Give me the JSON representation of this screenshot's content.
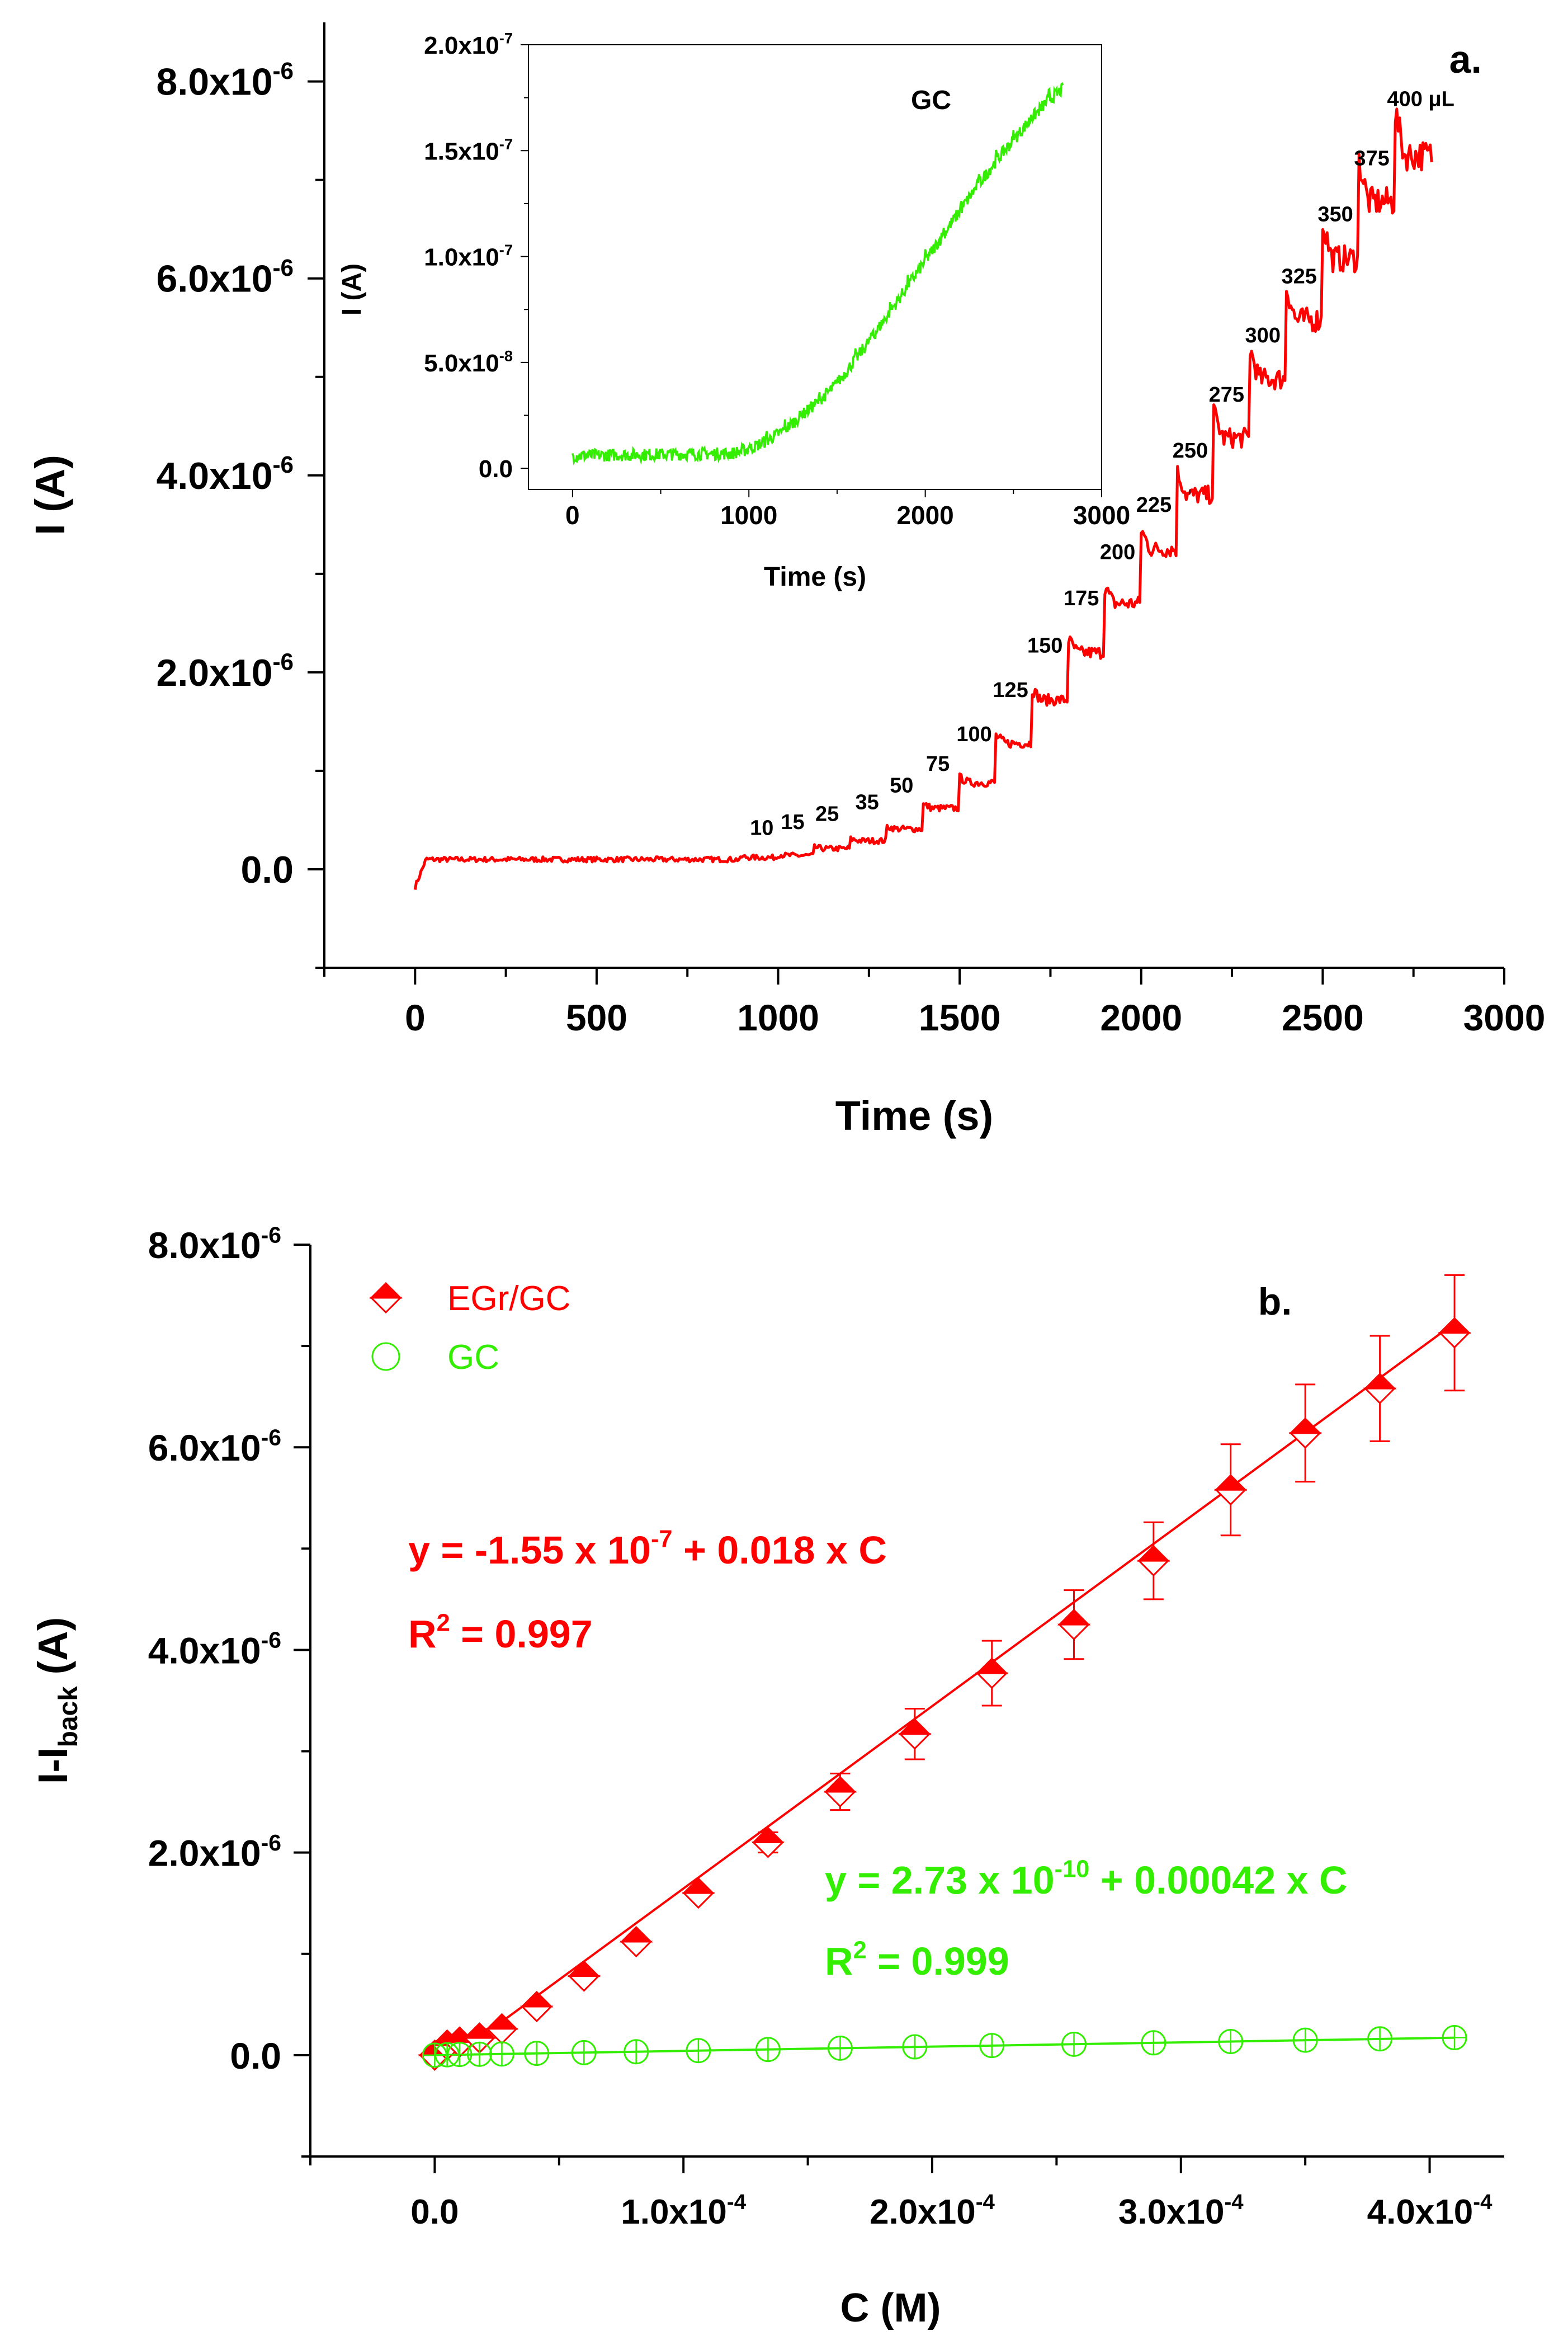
{
  "chart_data": [
    {
      "panel": "a.",
      "type": "line",
      "xlabel": "Time (s)",
      "ylabel": "I (A)",
      "xlim": [
        -250,
        3000
      ],
      "ylim": [
        -1e-06,
        8.6e-06
      ],
      "xticks": [
        "0",
        "500",
        "1000",
        "1500",
        "2000",
        "2500",
        "3000"
      ],
      "yticks": [
        {
          "m": "0.0",
          "e": ""
        },
        {
          "m": "2.0x10",
          "e": "-6"
        },
        {
          "m": "4.0x10",
          "e": "-6"
        },
        {
          "m": "6.0x10",
          "e": "-6"
        },
        {
          "m": "8.0x10",
          "e": "-6"
        }
      ],
      "color": "#ff0000",
      "series": [
        {
          "name": "EGr/GC",
          "steps": [
            {
              "t": 0,
              "i": 1e-07
            },
            {
              "t": 900,
              "i": 1.2e-07
            },
            {
              "t": 1000,
              "i": 1.4e-07
            },
            {
              "t": 1100,
              "i": 2.1e-07
            },
            {
              "t": 1200,
              "i": 2.9e-07
            },
            {
              "t": 1300,
              "i": 4.1e-07
            },
            {
              "t": 1400,
              "i": 6.2e-07
            },
            {
              "t": 1500,
              "i": 8.8e-07
            },
            {
              "t": 1600,
              "i": 1.28e-06
            },
            {
              "t": 1700,
              "i": 1.72e-06
            },
            {
              "t": 1800,
              "i": 2.2e-06
            },
            {
              "t": 1900,
              "i": 2.7e-06
            },
            {
              "t": 2000,
              "i": 3.25e-06
            },
            {
              "t": 2100,
              "i": 3.8e-06
            },
            {
              "t": 2200,
              "i": 4.38e-06
            },
            {
              "t": 2300,
              "i": 4.98e-06
            },
            {
              "t": 2400,
              "i": 5.58e-06
            },
            {
              "t": 2500,
              "i": 6.2e-06
            },
            {
              "t": 2600,
              "i": 6.78e-06
            },
            {
              "t": 2700,
              "i": 7.25e-06
            }
          ],
          "end_t": 2800
        }
      ],
      "annotations": [
        {
          "text": "10",
          "x": 955,
          "y": 3.5e-07
        },
        {
          "text": "15",
          "x": 1040,
          "y": 4.1e-07
        },
        {
          "text": "25",
          "x": 1135,
          "y": 4.9e-07
        },
        {
          "text": "35",
          "x": 1245,
          "y": 6.1e-07
        },
        {
          "text": "50",
          "x": 1340,
          "y": 7.8e-07
        },
        {
          "text": "75",
          "x": 1440,
          "y": 1e-06
        },
        {
          "text": "100",
          "x": 1540,
          "y": 1.3e-06
        },
        {
          "text": "125",
          "x": 1640,
          "y": 1.75e-06
        },
        {
          "text": "150",
          "x": 1735,
          "y": 2.2e-06
        },
        {
          "text": "175",
          "x": 1835,
          "y": 2.68e-06
        },
        {
          "text": "200",
          "x": 1935,
          "y": 3.15e-06
        },
        {
          "text": "225",
          "x": 2035,
          "y": 3.63e-06
        },
        {
          "text": "250",
          "x": 2135,
          "y": 4.18e-06
        },
        {
          "text": "275",
          "x": 2235,
          "y": 4.75e-06
        },
        {
          "text": "300",
          "x": 2335,
          "y": 5.35e-06
        },
        {
          "text": "325",
          "x": 2435,
          "y": 5.95e-06
        },
        {
          "text": "350",
          "x": 2535,
          "y": 6.58e-06
        },
        {
          "text": "375",
          "x": 2635,
          "y": 7.15e-06
        },
        {
          "text": "400 μL",
          "x": 2770,
          "y": 7.75e-06
        }
      ],
      "inset": {
        "title": "GC",
        "type": "line",
        "xlabel": "Time (s)",
        "ylabel": "I (A)",
        "xlim": [
          -250,
          3000
        ],
        "ylim": [
          -1e-08,
          2e-07
        ],
        "xticks": [
          "0",
          "1000",
          "2000",
          "3000"
        ],
        "yticks": [
          {
            "m": "0.0",
            "e": ""
          },
          {
            "m": "5.0x10",
            "e": "-8"
          },
          {
            "m": "1.0x10",
            "e": "-7"
          },
          {
            "m": "1.5x10",
            "e": "-7"
          },
          {
            "m": "2.0x10",
            "e": "-7"
          }
        ],
        "color": "#33ee00",
        "points": [
          [
            0,
            6e-09
          ],
          [
            900,
            7e-09
          ],
          [
            1000,
            9e-09
          ],
          [
            1100,
            1.3e-08
          ],
          [
            1200,
            1.8e-08
          ],
          [
            1300,
            2.5e-08
          ],
          [
            1400,
            3.2e-08
          ],
          [
            1500,
            4e-08
          ],
          [
            1600,
            5.1e-08
          ],
          [
            1700,
            6.2e-08
          ],
          [
            1800,
            7.4e-08
          ],
          [
            1900,
            8.6e-08
          ],
          [
            2000,
            9.8e-08
          ],
          [
            2100,
            1.1e-07
          ],
          [
            2200,
            1.22e-07
          ],
          [
            2300,
            1.34e-07
          ],
          [
            2400,
            1.45e-07
          ],
          [
            2500,
            1.55e-07
          ],
          [
            2600,
            1.65e-07
          ],
          [
            2700,
            1.74e-07
          ],
          [
            2780,
            1.79e-07
          ]
        ]
      }
    },
    {
      "panel": "b.",
      "type": "scatter",
      "xlabel": "C (M)",
      "ylabel": "I-I",
      "ylabel_sub": "back",
      "ylabel_suffix": " (A)",
      "xlim": [
        -5e-05,
        0.00043
      ],
      "ylim": [
        -1e-06,
        8e-06
      ],
      "xticks": [
        {
          "m": "0.0",
          "e": ""
        },
        {
          "m": "1.0x10",
          "e": "-4"
        },
        {
          "m": "2.0x10",
          "e": "-4"
        },
        {
          "m": "3.0x10",
          "e": "-4"
        },
        {
          "m": "4.0x10",
          "e": "-4"
        }
      ],
      "yticks": [
        {
          "m": "0.0",
          "e": ""
        },
        {
          "m": "2.0x10",
          "e": "-6"
        },
        {
          "m": "4.0x10",
          "e": "-6"
        },
        {
          "m": "6.0x10",
          "e": "-6"
        },
        {
          "m": "8.0x10",
          "e": "-6"
        }
      ],
      "legend": {
        "position": "top-left",
        "entries": [
          {
            "label": "EGr/GC",
            "color": "#ff0000"
          },
          {
            "label": "GC",
            "color": "#33ee00"
          }
        ]
      },
      "series": [
        {
          "name": "EGr/GC",
          "color": "#ff0000",
          "x": [
            0,
            5e-06,
            1e-05,
            1.8e-05,
            2.7e-05,
            4.1e-05,
            6e-05,
            8.1e-05,
            0.000106,
            0.000134,
            0.000163,
            0.000193,
            0.000224,
            0.000257,
            0.000289,
            0.00032,
            0.00035,
            0.00038,
            0.00041
          ],
          "y": [
            0,
            1e-07,
            1.3e-07,
            1.7e-07,
            2.6e-07,
            4.8e-07,
            7.8e-07,
            1.12e-06,
            1.6e-06,
            2.1e-06,
            2.6e-06,
            3.17e-06,
            3.77e-06,
            4.25e-06,
            4.88e-06,
            5.58e-06,
            6.14e-06,
            6.58e-06,
            7.13e-06
          ],
          "err": [
            0,
            0,
            0,
            0,
            0,
            0,
            0,
            0,
            0,
            1e-07,
            1.8e-07,
            2.5e-07,
            3.2e-07,
            3.4e-07,
            3.8e-07,
            4.5e-07,
            4.8e-07,
            5.2e-07,
            5.7e-07
          ],
          "fit": {
            "intercept": -1.55e-07,
            "slope": 0.018,
            "x_range": [
              1e-05,
              0.00041
            ]
          },
          "equation": {
            "pre": "y = -1.55 x 10",
            "exp": "-7",
            "post": " + 0.018 x C"
          },
          "r2": {
            "pre": "R",
            "exp": "2",
            "post": " = 0.997"
          }
        },
        {
          "name": "GC",
          "color": "#33ee00",
          "x": [
            0,
            5e-06,
            1e-05,
            1.8e-05,
            2.7e-05,
            4.1e-05,
            6e-05,
            8.1e-05,
            0.000106,
            0.000134,
            0.000163,
            0.000193,
            0.000224,
            0.000257,
            0.000289,
            0.00032,
            0.00035,
            0.00038,
            0.00041
          ],
          "y": [
            0,
            4e-09,
            7e-09,
            9e-09,
            1.2e-08,
            1.8e-08,
            2.5e-08,
            3.4e-08,
            4.5e-08,
            5.6e-08,
            6.9e-08,
            8.2e-08,
            9.5e-08,
            1.08e-07,
            1.22e-07,
            1.35e-07,
            1.48e-07,
            1.61e-07,
            1.73e-07
          ],
          "fit": {
            "intercept": 2.73e-10,
            "slope": 0.00042,
            "x_range": [
              0,
              0.00041
            ]
          },
          "equation": {
            "pre": "y = 2.73 x 10",
            "exp": "-10",
            "post": " + 0.00042 x C"
          },
          "r2": {
            "pre": "R",
            "exp": "2",
            "post": " = 0.999"
          }
        }
      ]
    }
  ]
}
